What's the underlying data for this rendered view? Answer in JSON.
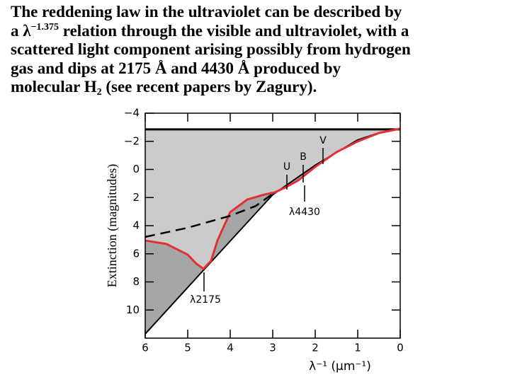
{
  "text": {
    "line1": "The reddening law in the ultraviolet can be described by",
    "line2a": "a λ",
    "line2sup": "−1.375",
    "line2b": " relation through the visible and ultraviolet, with a",
    "line3": "scattered light component arising possibly from hydrogen",
    "line4": "gas and dips at 2175 Å and 4430 Å produced by",
    "line5a": "molecular H",
    "line5sub": "2",
    "line5b": " (see recent papers by Zagury)."
  },
  "chart_data": {
    "type": "line",
    "y_label": "Extinction (magnitudes)",
    "x_label": "λ⁻¹ (μm⁻¹)",
    "xlim": [
      6,
      0
    ],
    "ylim": [
      12,
      -4
    ],
    "xticks": [
      6,
      5,
      4,
      3,
      2,
      1,
      0
    ],
    "yticks": [
      {
        "value": -4,
        "label": "−4"
      },
      {
        "value": -2,
        "label": "−2"
      },
      0,
      2,
      4,
      6,
      8,
      10
    ],
    "light_fill": "#cbcbcb",
    "dark_fill": "#a6a6a6",
    "series": [
      {
        "color": "#000000",
        "style": "solid",
        "width": 3,
        "x": [
          6,
          0
        ],
        "values": [
          -2.85,
          -2.85
        ]
      },
      {
        "color": "#000000",
        "style": "solid",
        "width": 2,
        "x": [
          6,
          4.63,
          3,
          2,
          1,
          0.5,
          0
        ],
        "values": [
          11.7,
          7.17,
          1.8,
          -0.3,
          -2.1,
          -2.6,
          -2.9
        ]
      },
      {
        "color": "#e03030",
        "style": "solid",
        "width": 3,
        "x": [
          6,
          5.5,
          5,
          4.8,
          4.63,
          4.45,
          4.3,
          4,
          3.6,
          3.2,
          2.95,
          2.7,
          2.4,
          2,
          1.5,
          1,
          0.5,
          0
        ],
        "values": [
          5.06,
          5.3,
          6.06,
          6.7,
          7.07,
          6.5,
          5.06,
          3.04,
          2.14,
          1.79,
          1.63,
          1.28,
          0.78,
          -0.18,
          -1.23,
          -1.99,
          -2.59,
          -2.9
        ]
      },
      {
        "color": "#000000",
        "style": "dashed",
        "width": 2.5,
        "x": [
          6,
          5,
          4,
          3.4,
          2.95
        ],
        "values": [
          4.8,
          4.15,
          3.3,
          2.6,
          1.63
        ]
      }
    ],
    "annotations": [
      "U",
      "B",
      "V",
      "λ4430",
      "λ2175"
    ]
  }
}
